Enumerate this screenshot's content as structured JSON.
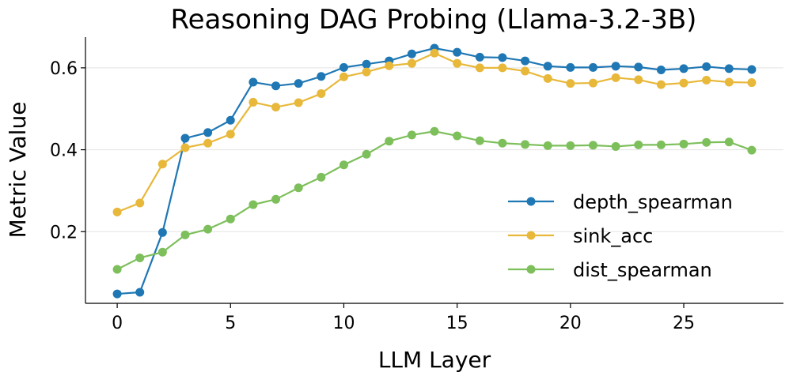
{
  "chart_data": {
    "type": "line",
    "title": "Reasoning DAG Probing (Llama-3.2-3B)",
    "xlabel": "LLM Layer",
    "ylabel": "Metric Value",
    "xlim": [
      -1.4,
      29.4
    ],
    "ylim": [
      0.025,
      0.675
    ],
    "xticks": [
      0,
      5,
      10,
      15,
      20,
      25
    ],
    "xtick_labels": [
      "0",
      "5",
      "10",
      "15",
      "20",
      "25"
    ],
    "yticks": [
      0.2,
      0.4,
      0.6
    ],
    "ytick_labels": [
      "0.2",
      "0.4",
      "0.6"
    ],
    "grid": "horizontal",
    "legend_position": "center-right",
    "x": [
      0,
      1,
      2,
      3,
      4,
      5,
      6,
      7,
      8,
      9,
      10,
      11,
      12,
      13,
      14,
      15,
      16,
      17,
      18,
      19,
      20,
      21,
      22,
      23,
      24,
      25,
      26,
      27,
      28
    ],
    "series": [
      {
        "name": "depth_spearman",
        "color": "#1f77b4",
        "values": [
          0.048,
          0.052,
          0.198,
          0.428,
          0.442,
          0.472,
          0.565,
          0.556,
          0.562,
          0.579,
          0.601,
          0.609,
          0.617,
          0.634,
          0.648,
          0.638,
          0.626,
          0.625,
          0.617,
          0.604,
          0.601,
          0.601,
          0.604,
          0.602,
          0.595,
          0.598,
          0.603,
          0.598,
          0.596
        ]
      },
      {
        "name": "sink_acc",
        "color": "#e8b83a",
        "values": [
          0.248,
          0.27,
          0.365,
          0.405,
          0.416,
          0.438,
          0.516,
          0.504,
          0.515,
          0.537,
          0.578,
          0.59,
          0.605,
          0.611,
          0.636,
          0.611,
          0.6,
          0.6,
          0.592,
          0.574,
          0.562,
          0.563,
          0.576,
          0.571,
          0.559,
          0.563,
          0.57,
          0.565,
          0.564
        ]
      },
      {
        "name": "dist_spearman",
        "color": "#7dbf5b",
        "values": [
          0.108,
          0.136,
          0.15,
          0.192,
          0.206,
          0.231,
          0.266,
          0.279,
          0.307,
          0.333,
          0.363,
          0.389,
          0.421,
          0.436,
          0.445,
          0.434,
          0.422,
          0.416,
          0.413,
          0.41,
          0.41,
          0.411,
          0.408,
          0.412,
          0.412,
          0.414,
          0.418,
          0.419,
          0.399
        ]
      }
    ]
  }
}
